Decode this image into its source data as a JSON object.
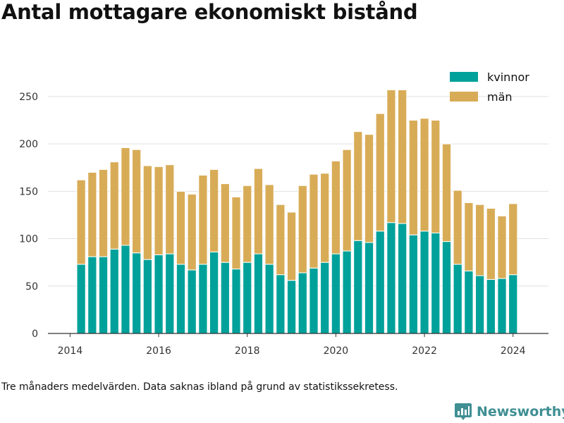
{
  "title": "Antal mottagare ekonomiskt bistånd",
  "footnote": "Tre månaders medelvärden. Data saknas ibland på grund av statistikssekretess.",
  "brand": {
    "name": "Newsworthy",
    "color": "#3f8f93"
  },
  "colors": {
    "kvinnor": "#00a19a",
    "man": "#d8ac57",
    "grid": "#e0e0e0",
    "axis": "#333333"
  },
  "chart_data": {
    "type": "bar",
    "stacked": true,
    "title": "Antal mottagare ekonomiskt bistånd",
    "xlabel": "",
    "ylabel": "",
    "ylim": [
      0,
      270
    ],
    "xlim": [
      2013.5,
      2024.8
    ],
    "yticks": [
      0,
      50,
      100,
      150,
      200,
      250
    ],
    "xticks": [
      2014,
      2016,
      2018,
      2020,
      2022,
      2024
    ],
    "grid": true,
    "legend_position": "top-right",
    "x": [
      2014.25,
      2014.5,
      2014.75,
      2015.0,
      2015.25,
      2015.5,
      2015.75,
      2016.0,
      2016.25,
      2016.5,
      2016.75,
      2017.0,
      2017.25,
      2017.5,
      2017.75,
      2018.0,
      2018.25,
      2018.5,
      2018.75,
      2019.0,
      2019.25,
      2019.5,
      2019.75,
      2020.0,
      2020.25,
      2020.5,
      2020.75,
      2021.0,
      2021.25,
      2021.5,
      2021.75,
      2022.0,
      2022.25,
      2022.5,
      2022.75,
      2023.0,
      2023.25,
      2023.5,
      2023.75,
      2024.0
    ],
    "series": [
      {
        "name": "kvinnor",
        "values": [
          73,
          81,
          81,
          89,
          93,
          85,
          78,
          83,
          84,
          73,
          67,
          73,
          86,
          75,
          68,
          75,
          84,
          73,
          62,
          56,
          64,
          69,
          75,
          84,
          87,
          98,
          96,
          108,
          117,
          116,
          104,
          108,
          106,
          97,
          73,
          66,
          61,
          57,
          58,
          62
        ]
      },
      {
        "name": "män",
        "values": [
          89,
          89,
          92,
          92,
          103,
          109,
          99,
          93,
          94,
          77,
          80,
          94,
          87,
          83,
          76,
          81,
          90,
          84,
          74,
          72,
          92,
          99,
          94,
          98,
          107,
          115,
          114,
          124,
          140,
          141,
          121,
          119,
          119,
          103,
          78,
          72,
          75,
          75,
          66,
          75
        ]
      }
    ]
  }
}
